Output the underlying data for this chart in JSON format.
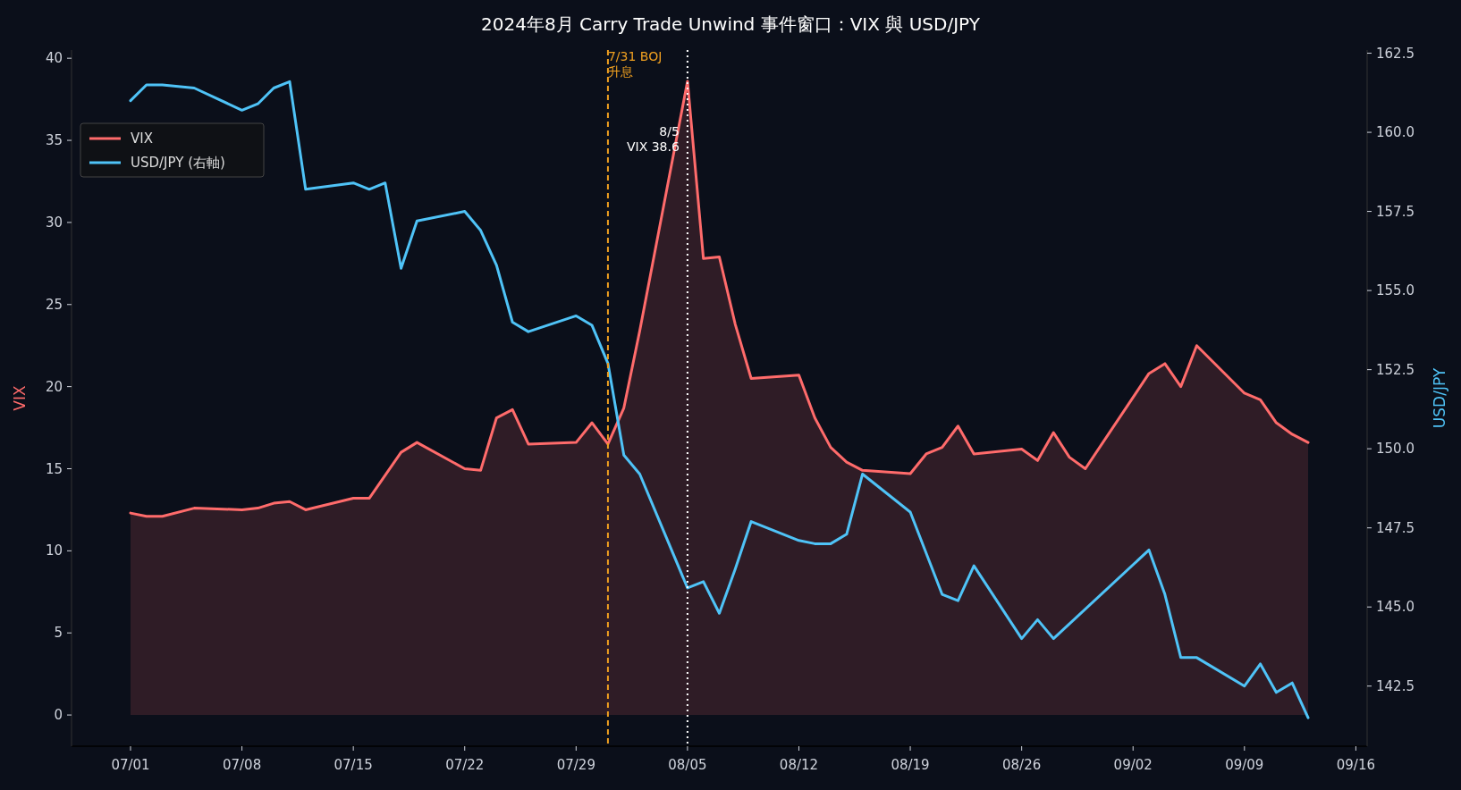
{
  "chart_data": {
    "type": "line",
    "title": "2024年8月 Carry Trade Unwind 事件窗口：VIX 與 USD/JPY",
    "ylabel": "VIX",
    "y2label": "USD/JPY",
    "x": [
      "2024-07-01",
      "2024-07-02",
      "2024-07-03",
      "2024-07-05",
      "2024-07-08",
      "2024-07-09",
      "2024-07-10",
      "2024-07-11",
      "2024-07-12",
      "2024-07-15",
      "2024-07-16",
      "2024-07-17",
      "2024-07-18",
      "2024-07-19",
      "2024-07-22",
      "2024-07-23",
      "2024-07-24",
      "2024-07-25",
      "2024-07-26",
      "2024-07-29",
      "2024-07-30",
      "2024-07-31",
      "2024-08-01",
      "2024-08-02",
      "2024-08-05",
      "2024-08-06",
      "2024-08-07",
      "2024-08-08",
      "2024-08-09",
      "2024-08-12",
      "2024-08-13",
      "2024-08-14",
      "2024-08-15",
      "2024-08-16",
      "2024-08-19",
      "2024-08-20",
      "2024-08-21",
      "2024-08-22",
      "2024-08-23",
      "2024-08-26",
      "2024-08-27",
      "2024-08-28",
      "2024-08-29",
      "2024-08-30",
      "2024-09-03",
      "2024-09-04",
      "2024-09-05",
      "2024-09-06",
      "2024-09-09",
      "2024-09-10",
      "2024-09-11",
      "2024-09-12",
      "2024-09-13"
    ],
    "series": [
      {
        "name": "VIX",
        "type": "area",
        "color": "#ff6b6b",
        "values": [
          12.3,
          12.1,
          12.1,
          12.6,
          12.5,
          12.6,
          12.9,
          13.0,
          12.5,
          13.2,
          13.2,
          14.6,
          16.0,
          16.6,
          15.0,
          14.9,
          18.1,
          18.6,
          16.5,
          16.6,
          17.8,
          16.5,
          18.7,
          23.4,
          38.6,
          27.8,
          27.9,
          23.8,
          20.5,
          20.7,
          18.1,
          16.3,
          15.4,
          14.9,
          14.7,
          15.9,
          16.3,
          17.6,
          15.9,
          16.2,
          15.5,
          17.2,
          15.7,
          15.0,
          20.8,
          21.4,
          20.0,
          22.5,
          19.6,
          19.2,
          17.8,
          17.1,
          16.6
        ]
      },
      {
        "name": "USD/JPY (右軸)",
        "type": "line",
        "axis": "y2",
        "color": "#4fc3f7",
        "x": [
          "2024-07-01",
          "2024-07-02",
          "2024-07-03",
          "2024-07-05",
          "2024-07-08",
          "2024-07-09",
          "2024-07-10",
          "2024-07-11",
          "2024-07-12",
          "2024-07-15",
          "2024-07-16",
          "2024-07-17",
          "2024-07-18",
          "2024-07-19",
          "2024-07-22",
          "2024-07-23",
          "2024-07-24",
          "2024-07-25",
          "2024-07-26",
          "2024-07-29",
          "2024-07-30",
          "2024-07-31",
          "2024-08-01",
          "2024-08-02",
          "2024-08-05",
          "2024-08-06",
          "2024-08-07",
          "2024-08-08",
          "2024-08-09",
          "2024-08-12",
          "2024-08-13",
          "2024-08-14",
          "2024-08-15",
          "2024-08-16",
          "2024-08-19",
          "2024-08-20",
          "2024-08-21",
          "2024-08-22",
          "2024-08-23",
          "2024-08-26",
          "2024-08-27",
          "2024-08-28",
          "2024-09-03",
          "2024-09-04",
          "2024-09-05",
          "2024-09-06",
          "2024-09-09",
          "2024-09-10",
          "2024-09-11",
          "2024-09-12",
          "2024-09-13"
        ],
        "values": [
          161.0,
          161.5,
          161.5,
          161.4,
          160.7,
          160.9,
          161.4,
          161.6,
          158.2,
          158.4,
          158.2,
          158.4,
          155.7,
          157.2,
          157.5,
          156.9,
          155.8,
          154.0,
          153.7,
          154.2,
          153.9,
          152.7,
          149.8,
          149.2,
          145.6,
          145.8,
          144.8,
          146.2,
          147.7,
          147.1,
          147.0,
          147.0,
          147.3,
          149.2,
          148.0,
          146.7,
          145.4,
          145.2,
          146.3,
          144.0,
          144.6,
          144.0,
          146.8,
          145.4,
          143.4,
          143.4,
          142.5,
          143.2,
          142.3,
          142.6,
          141.5
        ]
      }
    ],
    "xlim": [
      "2024-06-27T07:00",
      "2024-09-16T17:00"
    ],
    "xticks": [
      {
        "value": "2024-07-01",
        "label": "07/01"
      },
      {
        "value": "2024-07-08",
        "label": "07/08"
      },
      {
        "value": "2024-07-15",
        "label": "07/15"
      },
      {
        "value": "2024-07-22",
        "label": "07/22"
      },
      {
        "value": "2024-07-29",
        "label": "07/29"
      },
      {
        "value": "2024-08-05",
        "label": "08/05"
      },
      {
        "value": "2024-08-12",
        "label": "08/12"
      },
      {
        "value": "2024-08-19",
        "label": "08/19"
      },
      {
        "value": "2024-08-26",
        "label": "08/26"
      },
      {
        "value": "2024-09-02",
        "label": "09/02"
      },
      {
        "value": "2024-09-09",
        "label": "09/09"
      },
      {
        "value": "2024-09-16",
        "label": "09/16"
      }
    ],
    "ylim": [
      -1.9,
      40.5
    ],
    "yticks": [
      0,
      5,
      10,
      15,
      20,
      25,
      30,
      35,
      40
    ],
    "y2lim": [
      140.6,
      162.6
    ],
    "y2ticks": [
      {
        "value": 142.5,
        "label": "142.5"
      },
      {
        "value": 145,
        "label": "145.0"
      },
      {
        "value": 147.5,
        "label": "147.5"
      },
      {
        "value": 150,
        "label": "150.0"
      },
      {
        "value": 152.5,
        "label": "152.5"
      },
      {
        "value": 155,
        "label": "155.0"
      },
      {
        "value": 157.5,
        "label": "157.5"
      },
      {
        "value": 160,
        "label": "160.0"
      },
      {
        "value": 162.5,
        "label": "162.5"
      }
    ],
    "ref_lines": [
      {
        "axis": "x",
        "value": "2024-07-31",
        "label": "7/31 BOJ\n升息",
        "color": "#f0a020",
        "line_style": "dashed"
      },
      {
        "axis": "x",
        "value": "2024-08-05",
        "label": null,
        "color": "#ffffff",
        "line_style": "dotted"
      }
    ],
    "annotations": [
      "8/5\nVIX 38.6"
    ],
    "legend": "top left",
    "grid": false
  }
}
